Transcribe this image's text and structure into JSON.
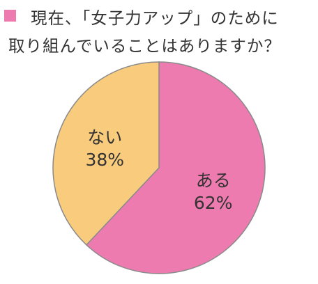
{
  "title_lines": [
    "現在、「女子力アップ」のために",
    "取り組んでいることはありますか？"
  ],
  "colors": {
    "marker": "#ee7bb0",
    "aru": "#ee7bb0",
    "nai": "#f9cc7d",
    "stroke": "#8a8a8a",
    "label": "#333333"
  },
  "chart_data": {
    "type": "pie",
    "title": "現在、「女子力アップ」のために取り組んでいることはありますか？",
    "slices": [
      {
        "label": "ある",
        "value": 62,
        "display": "62%"
      },
      {
        "label": "ない",
        "value": 38,
        "display": "38%"
      }
    ]
  }
}
